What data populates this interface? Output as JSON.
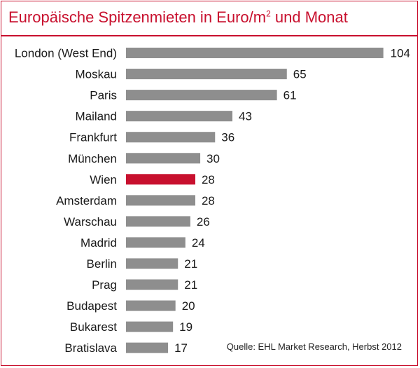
{
  "title_prefix": "Europäische Spitzenmieten in Euro/m",
  "title_sup": "2",
  "title_suffix": " und Monat",
  "source": "Quelle: EHL Market Research, Herbst 2012",
  "colors": {
    "bar": "#8e8e8e",
    "highlight": "#c8102e",
    "title": "#c8102e",
    "frame": "#c8102e"
  },
  "chart_data": {
    "type": "bar",
    "orientation": "horizontal",
    "title": "Europäische Spitzenmieten in Euro/m² und Monat",
    "xlabel": "",
    "ylabel": "",
    "categories": [
      "London (West End)",
      "Moskau",
      "Paris",
      "Mailand",
      "Frankfurt",
      "München",
      "Wien",
      "Amsterdam",
      "Warschau",
      "Madrid",
      "Berlin",
      "Prag",
      "Budapest",
      "Bukarest",
      "Bratislava"
    ],
    "values": [
      104,
      65,
      61,
      43,
      36,
      30,
      28,
      28,
      26,
      24,
      21,
      21,
      20,
      19,
      17
    ],
    "highlight": "Wien",
    "grid": false,
    "legend": "none"
  }
}
